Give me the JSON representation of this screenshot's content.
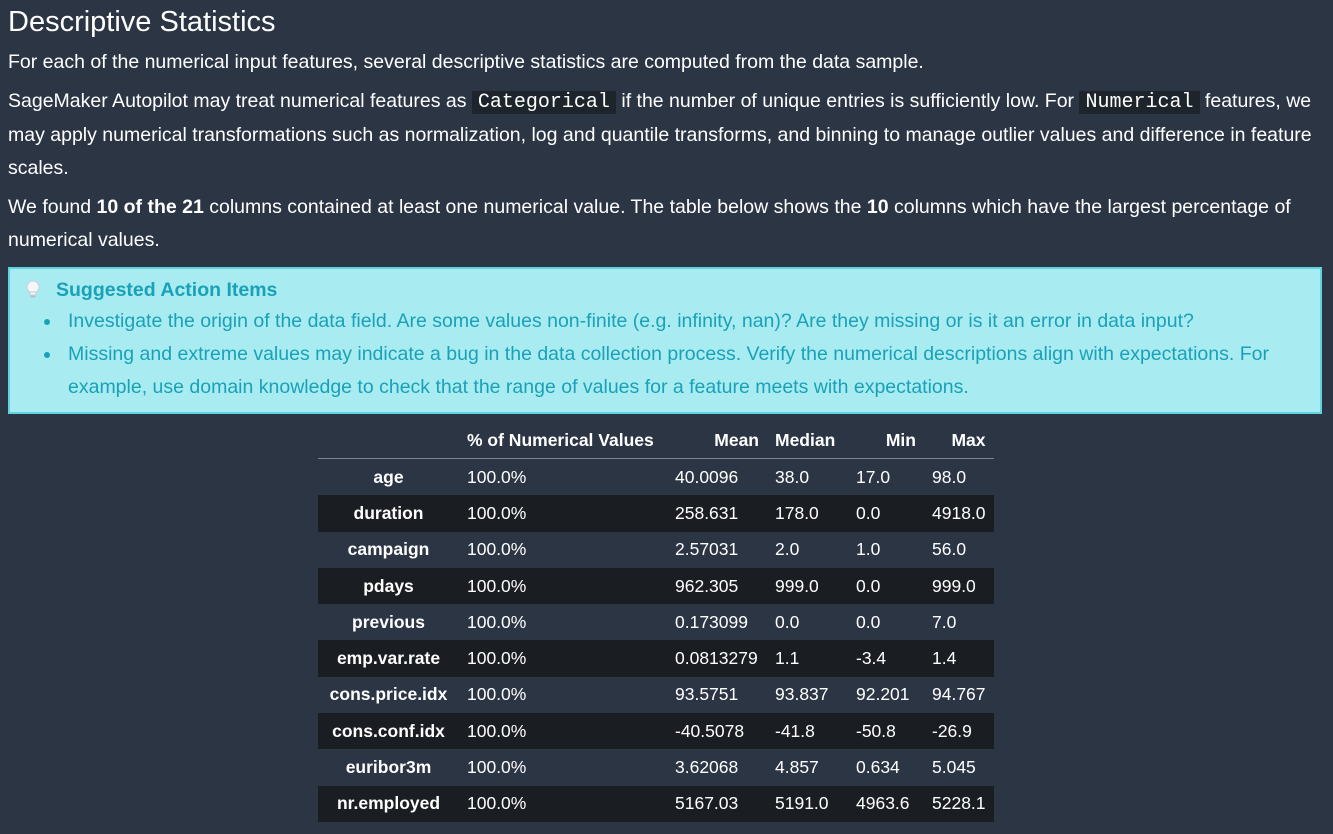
{
  "heading": "Descriptive Statistics",
  "intro": "For each of the numerical input features, several descriptive statistics are computed from the data sample.",
  "para2": {
    "part1": "SageMaker Autopilot may treat numerical features as ",
    "code1": "Categorical",
    "part2": " if the number of unique entries is sufficiently low. For ",
    "code2": "Numerical",
    "part3": " features, we may apply numerical transformations such as normalization, log and quantile transforms, and binning to manage outlier values and difference in feature scales."
  },
  "para3": {
    "part1": "We found ",
    "bold1": "10 of the 21",
    "part2": " columns contained at least one numerical value. The table below shows the ",
    "bold2": "10",
    "part3": " columns which have the largest percentage of numerical values."
  },
  "callout": {
    "title": "Suggested Action Items",
    "icon": "lightbulb-icon",
    "items": [
      "Investigate the origin of the data field. Are some values non-finite (e.g. infinity, nan)? Are they missing or is it an error in data input?",
      "Missing and extreme values may indicate a bug in the data collection process. Verify the numerical descriptions align with expectations. For example, use domain knowledge to check that the range of values for a feature meets with expectations."
    ],
    "colors": {
      "background": "#a8ecf1",
      "border": "#5fd3df",
      "text": "#1aa1b7"
    }
  },
  "table": {
    "headers": [
      "",
      "% of Numerical Values",
      "Mean",
      "Median",
      "Min",
      "Max"
    ],
    "rows": [
      [
        "age",
        "100.0%",
        "40.0096",
        "38.0",
        "17.0",
        "98.0"
      ],
      [
        "duration",
        "100.0%",
        "258.631",
        "178.0",
        "0.0",
        "4918.0"
      ],
      [
        "campaign",
        "100.0%",
        "2.57031",
        "2.0",
        "1.0",
        "56.0"
      ],
      [
        "pdays",
        "100.0%",
        "962.305",
        "999.0",
        "0.0",
        "999.0"
      ],
      [
        "previous",
        "100.0%",
        "0.173099",
        "0.0",
        "0.0",
        "7.0"
      ],
      [
        "emp.var.rate",
        "100.0%",
        "0.0813279",
        "1.1",
        "-3.4",
        "1.4"
      ],
      [
        "cons.price.idx",
        "100.0%",
        "93.5751",
        "93.837",
        "92.201",
        "94.767"
      ],
      [
        "cons.conf.idx",
        "100.0%",
        "-40.5078",
        "-41.8",
        "-50.8",
        "-26.9"
      ],
      [
        "euribor3m",
        "100.0%",
        "3.62068",
        "4.857",
        "0.634",
        "5.045"
      ],
      [
        "nr.employed",
        "100.0%",
        "5167.03",
        "5191.0",
        "4963.6",
        "5228.1"
      ]
    ]
  },
  "colors": {
    "page_background": "#2b3544",
    "row_stripe": "#1a1d22"
  }
}
